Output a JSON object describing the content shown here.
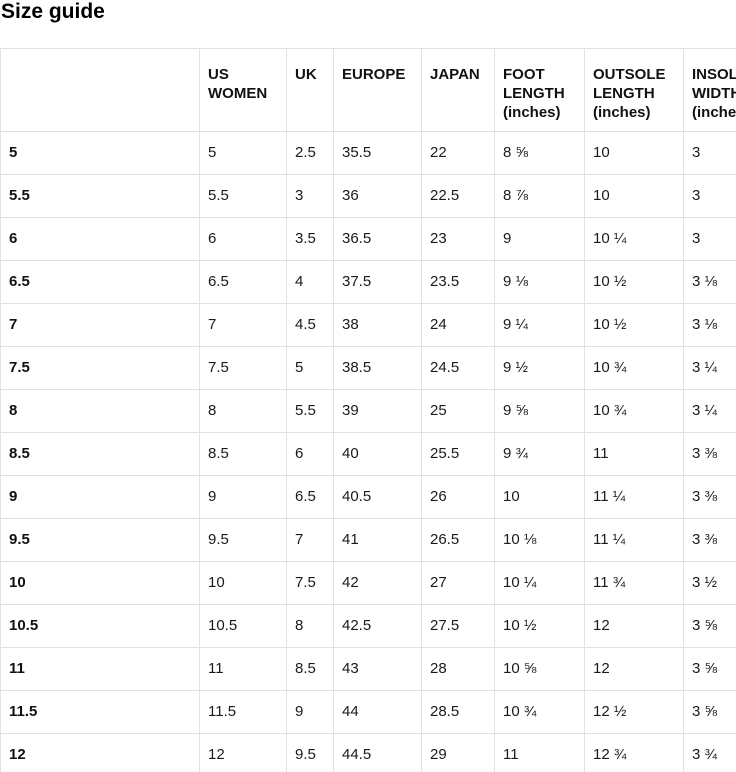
{
  "page": {
    "title": "Size guide"
  },
  "colors": {
    "background": "#ffffff",
    "border": "#e1e1e1",
    "text": "#1a1a1a",
    "heading_text": "#000000"
  },
  "table": {
    "columns": [
      {
        "key": "size",
        "label": ""
      },
      {
        "key": "us_women",
        "label": "US WOMEN"
      },
      {
        "key": "uk",
        "label": "UK"
      },
      {
        "key": "europe",
        "label": "EUROPE"
      },
      {
        "key": "japan",
        "label": "JAPAN"
      },
      {
        "key": "foot_length",
        "label": "FOOT LENGTH (inches)"
      },
      {
        "key": "outsole_length",
        "label": "OUTSOLE LENGTH (inches)"
      },
      {
        "key": "insole_width",
        "label": "INSOLE WIDTH (inches)"
      }
    ],
    "rows": [
      [
        "5",
        "5",
        "2.5",
        "35.5",
        "22",
        "8 ⅝",
        "10",
        "3"
      ],
      [
        "5.5",
        "5.5",
        "3",
        "36",
        "22.5",
        "8 ⅞",
        "10",
        "3"
      ],
      [
        "6",
        "6",
        "3.5",
        "36.5",
        "23",
        "9",
        "10 ¼",
        "3"
      ],
      [
        "6.5",
        "6.5",
        "4",
        "37.5",
        "23.5",
        "9 ⅛",
        "10 ½",
        "3 ⅛"
      ],
      [
        "7",
        "7",
        "4.5",
        "38",
        "24",
        "9 ¼",
        "10 ½",
        "3 ⅛"
      ],
      [
        "7.5",
        "7.5",
        "5",
        "38.5",
        "24.5",
        "9 ½",
        "10 ¾",
        "3 ¼"
      ],
      [
        "8",
        "8",
        "5.5",
        "39",
        "25",
        "9 ⅝",
        "10 ¾",
        "3 ¼"
      ],
      [
        "8.5",
        "8.5",
        "6",
        "40",
        "25.5",
        "9 ¾",
        "11",
        "3 ⅜"
      ],
      [
        "9",
        "9",
        "6.5",
        "40.5",
        "26",
        "10",
        "11 ¼",
        "3 ⅜"
      ],
      [
        "9.5",
        "9.5",
        "7",
        "41",
        "26.5",
        "10 ⅛",
        "11 ¼",
        "3 ⅜"
      ],
      [
        "10",
        "10",
        "7.5",
        "42",
        "27",
        "10 ¼",
        "11 ¾",
        "3 ½"
      ],
      [
        "10.5",
        "10.5",
        "8",
        "42.5",
        "27.5",
        "10 ½",
        "12",
        "3 ⅝"
      ],
      [
        "11",
        "11",
        "8.5",
        "43",
        "28",
        "10 ⅝",
        "12",
        "3 ⅝"
      ],
      [
        "11.5",
        "11.5",
        "9",
        "44",
        "28.5",
        "10 ¾",
        "12 ½",
        "3 ⅝"
      ],
      [
        "12",
        "12",
        "9.5",
        "44.5",
        "29",
        "11",
        "12 ¾",
        "3 ¾"
      ]
    ]
  }
}
